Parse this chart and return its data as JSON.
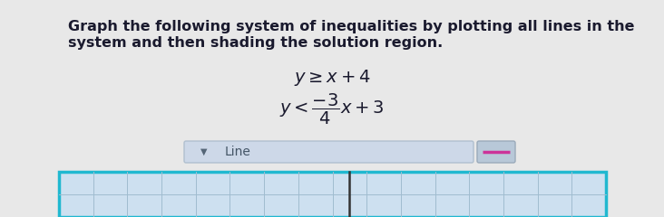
{
  "background_color": "#e8e8e8",
  "text_color": "#1a1a2e",
  "line1": "Graph the following system of inequalities by plotting all lines in the",
  "line2": "system and then shading the solution region.",
  "ineq1": "y ≥ x+4",
  "dropdown_label": "Line",
  "dropdown_bg": "#cdd8e8",
  "dropdown_border": "#b0bfcf",
  "icon_bg": "#b8c8d8",
  "icon_border": "#9aaaba",
  "dash_color": "#cc3399",
  "grid_bg": "#cde0f0",
  "grid_border": "#20b8d0",
  "grid_line_color": "#a0bcd0",
  "axis_line_color": "#333333",
  "title_fontsize": 11.5,
  "math_fontsize": 13,
  "fig_width": 7.32,
  "fig_height": 2.4,
  "dpi": 100
}
